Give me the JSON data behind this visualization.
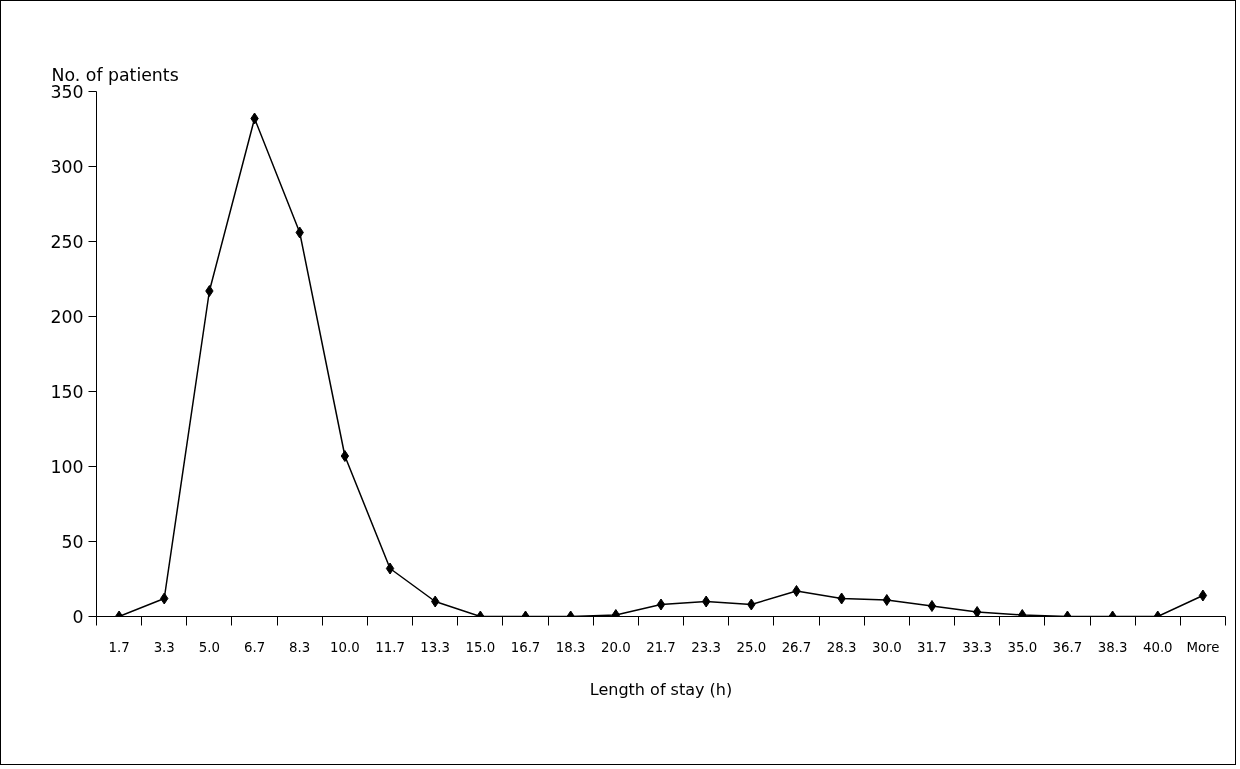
{
  "chart_data": {
    "type": "line",
    "xlabel": "Length of stay (h)",
    "ylabel": "No. of patients",
    "categories": [
      "1.7",
      "3.3",
      "5.0",
      "6.7",
      "8.3",
      "10.0",
      "11.7",
      "13.3",
      "15.0",
      "16.7",
      "18.3",
      "20.0",
      "21.7",
      "23.3",
      "25.0",
      "26.7",
      "28.3",
      "30.0",
      "31.7",
      "33.3",
      "35.0",
      "36.7",
      "38.3",
      "40.0",
      "More"
    ],
    "series": [
      {
        "color": "#000000",
        "values": [
          0,
          12,
          217,
          332,
          256,
          107,
          32,
          10,
          0,
          0,
          0,
          1,
          8,
          10,
          8,
          17,
          12,
          11,
          7,
          3,
          1,
          0,
          0,
          0,
          14
        ]
      }
    ],
    "ylim": [
      0,
      350
    ],
    "yticks": [
      0,
      50,
      100,
      150,
      200,
      250,
      300,
      350
    ],
    "marker": "diamond",
    "line_style": "solid",
    "grid": false
  }
}
